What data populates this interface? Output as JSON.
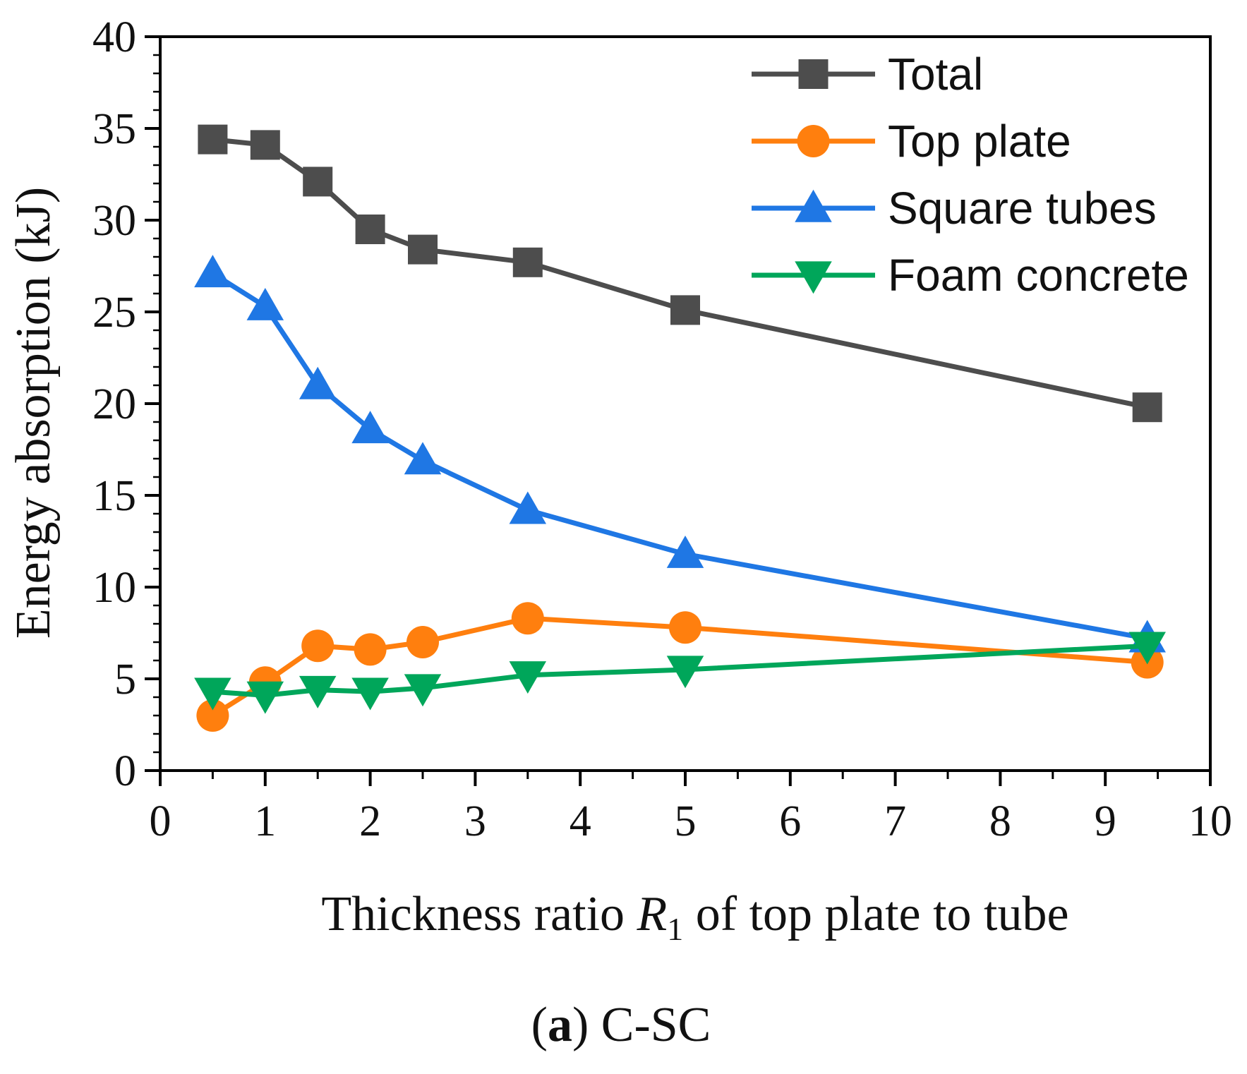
{
  "chart_data": {
    "type": "line",
    "title": "",
    "xlabel": "Thickness ratio R1 of top plate to tube",
    "xlabel_parts": {
      "before": "Thickness ratio ",
      "var": "R",
      "sub": "1",
      "after": " of top plate to tube"
    },
    "ylabel": "Energy absorption (kJ)",
    "xlim": [
      0,
      10
    ],
    "ylim": [
      0,
      40
    ],
    "xticks": [
      0,
      1,
      2,
      3,
      4,
      5,
      6,
      7,
      8,
      9,
      10
    ],
    "yticks": [
      0,
      5,
      10,
      15,
      20,
      25,
      30,
      35,
      40
    ],
    "x": [
      0.5,
      1,
      1.5,
      2,
      2.5,
      3.5,
      5,
      9.4
    ],
    "series": [
      {
        "name": "Total",
        "color": "#4d4d4d",
        "marker": "square",
        "values": [
          34.4,
          34.1,
          32.1,
          29.5,
          28.4,
          27.7,
          25.1,
          19.8
        ]
      },
      {
        "name": "Top plate",
        "color": "#ff7f0e",
        "marker": "circle",
        "values": [
          3.0,
          4.8,
          6.8,
          6.6,
          7.0,
          8.3,
          7.8,
          5.9
        ]
      },
      {
        "name": "Square tubes",
        "color": "#1f77e4",
        "marker": "triangle-up",
        "values": [
          27.1,
          25.3,
          21.0,
          18.6,
          16.9,
          14.2,
          11.8,
          7.2
        ]
      },
      {
        "name": "Foam concrete",
        "color": "#00a65a",
        "marker": "triangle-down",
        "values": [
          4.3,
          4.1,
          4.4,
          4.3,
          4.5,
          5.2,
          5.5,
          6.8
        ]
      }
    ],
    "legend_position": "top-right",
    "grid": false
  },
  "caption": {
    "label": "(a)",
    "label_letter": "a",
    "text": "C-SC"
  }
}
